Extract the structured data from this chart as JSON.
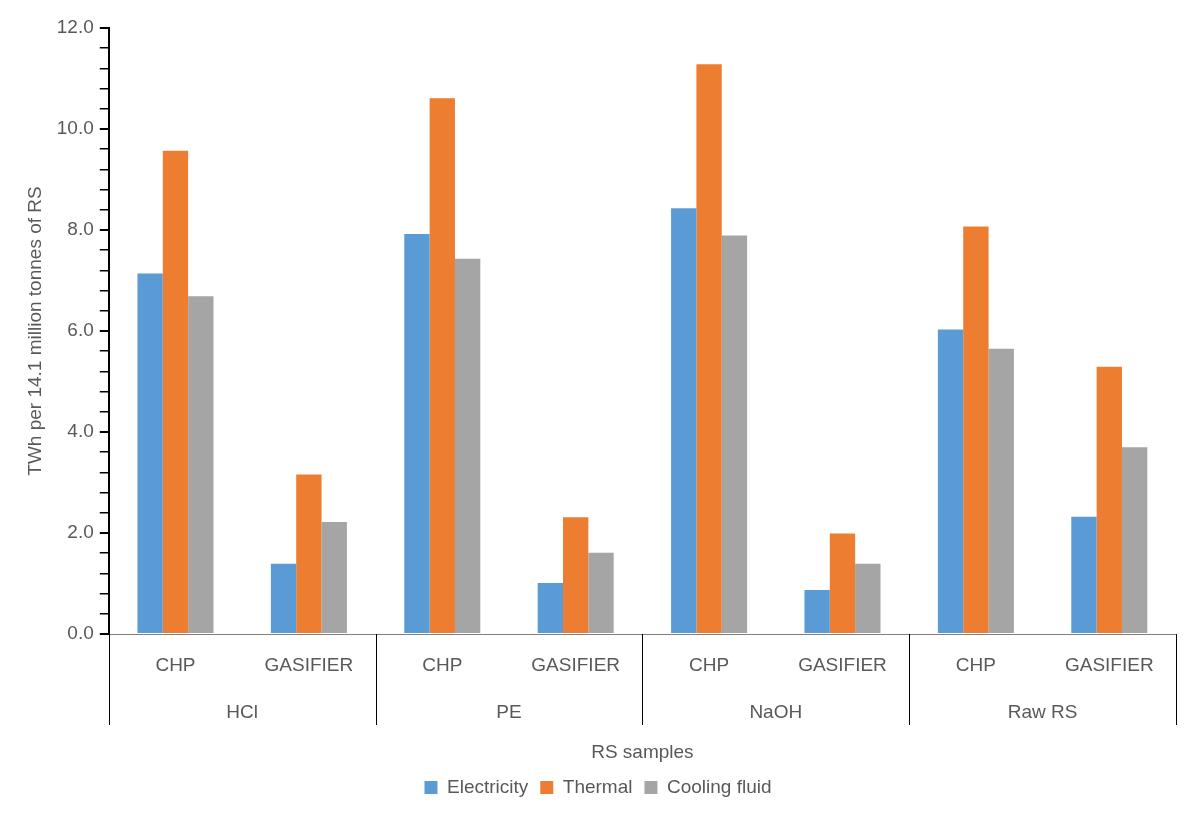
{
  "chart_data": {
    "type": "bar",
    "categories": [
      "CHP",
      "GASIFIER",
      "CHP",
      "GASIFIER",
      "CHP",
      "GASIFIER",
      "CHP",
      "GASIFIER"
    ],
    "series": [
      {
        "name": "Electricity",
        "color": "#5b9bd5",
        "values": [
          7.14,
          1.39,
          7.92,
          1.01,
          8.43,
          0.87,
          6.03,
          2.32
        ]
      },
      {
        "name": "Thermal",
        "color": "#ed7d31",
        "values": [
          9.57,
          3.16,
          10.61,
          2.31,
          11.28,
          1.99,
          8.07,
          5.29
        ]
      },
      {
        "name": "Cooling fluid",
        "color": "#a5a5a5",
        "values": [
          6.69,
          2.22,
          7.43,
          1.61,
          7.89,
          1.39,
          5.65,
          3.7
        ]
      }
    ],
    "annotations": [
      "HCl",
      "PE",
      "NaOH",
      "Raw RS"
    ],
    "xlabel": "RS samples",
    "ylabel": "TWh per 14.1 million tonnes of RS",
    "ylim": [
      0,
      12
    ],
    "yticks": [
      {
        "value": 0,
        "label": "0.0"
      },
      {
        "value": 0.4,
        "label": null
      },
      {
        "value": 0.8,
        "label": null
      },
      {
        "value": 1.2,
        "label": null
      },
      {
        "value": 1.6,
        "label": null
      },
      {
        "value": 2,
        "label": "2.0"
      },
      {
        "value": 2.4,
        "label": null
      },
      {
        "value": 2.8,
        "label": null
      },
      {
        "value": 3.2,
        "label": null
      },
      {
        "value": 3.6,
        "label": null
      },
      {
        "value": 4,
        "label": "4.0"
      },
      {
        "value": 4.4,
        "label": null
      },
      {
        "value": 4.8,
        "label": null
      },
      {
        "value": 5.2,
        "label": null
      },
      {
        "value": 5.6,
        "label": null
      },
      {
        "value": 6,
        "label": "6.0"
      },
      {
        "value": 6.4,
        "label": null
      },
      {
        "value": 6.8,
        "label": null
      },
      {
        "value": 7.2,
        "label": null
      },
      {
        "value": 7.6,
        "label": null
      },
      {
        "value": 8,
        "label": "8.0"
      },
      {
        "value": 8.4,
        "label": null
      },
      {
        "value": 8.8,
        "label": null
      },
      {
        "value": 9.2,
        "label": null
      },
      {
        "value": 9.6,
        "label": null
      },
      {
        "value": 10,
        "label": "10.0"
      },
      {
        "value": 10.4,
        "label": null
      },
      {
        "value": 10.8,
        "label": null
      },
      {
        "value": 11.2,
        "label": null
      },
      {
        "value": 11.6,
        "label": null
      },
      {
        "value": 12,
        "label": "12.0"
      }
    ],
    "legend": "bottom"
  }
}
